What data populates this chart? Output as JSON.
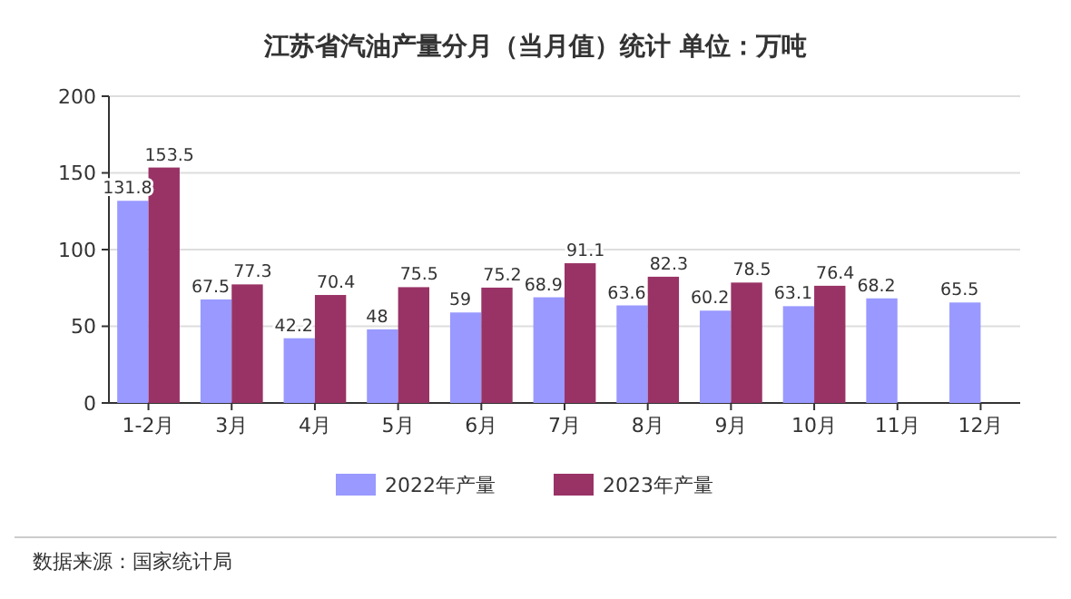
{
  "chart_data": {
    "type": "bar",
    "title": "江苏省汽油产量分月（当月值）统计  单位：万吨",
    "categories": [
      "1-2月",
      "3月",
      "4月",
      "5月",
      "6月",
      "7月",
      "8月",
      "9月",
      "10月",
      "11月",
      "12月"
    ],
    "series": [
      {
        "name": "2022年产量",
        "color": "#9999ff",
        "values": [
          131.8,
          67.5,
          42.2,
          48,
          59,
          68.9,
          63.6,
          60.2,
          63.1,
          68.2,
          65.5
        ]
      },
      {
        "name": "2023年产量",
        "color": "#993366",
        "values": [
          153.5,
          77.3,
          70.4,
          75.5,
          75.2,
          91.1,
          82.3,
          78.5,
          76.4,
          null,
          null
        ]
      }
    ],
    "ylim": [
      0,
      200
    ],
    "yticks": [
      0,
      50,
      100,
      150,
      200
    ],
    "grid": "y",
    "legend": "bottom",
    "data_labels": true,
    "annotations": [
      "数据来源：国家统计局"
    ]
  }
}
